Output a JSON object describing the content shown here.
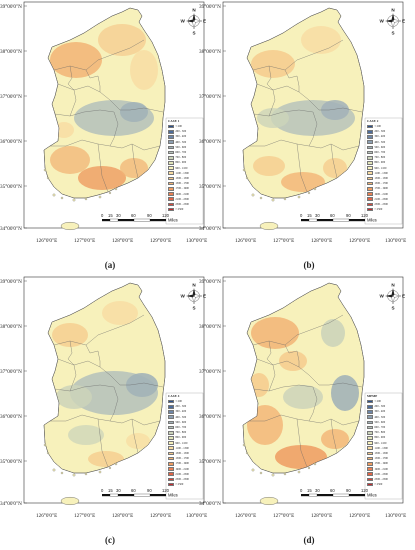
{
  "panels": [
    {
      "tag": "(a)",
      "legend_title": "CASE 1",
      "variant": "a"
    },
    {
      "tag": "(b)",
      "legend_title": "CASE 2",
      "variant": "b"
    },
    {
      "tag": "(c)",
      "legend_title": "CASE 4",
      "variant": "c"
    },
    {
      "tag": "(d)",
      "legend_title": "MPMP",
      "variant": "d"
    }
  ],
  "lat_labels": [
    "39°00'0\"N",
    "38°00'0\"N",
    "37°00'0\"N",
    "36°00'0\"N",
    "35°00'0\"N",
    "34°00'0\"N"
  ],
  "lon_labels": [
    "126°0'0\"E",
    "127°0'0\"E",
    "128°0'0\"E",
    "129°0'0\"E",
    "130°0'0\"E"
  ],
  "compass": {
    "n": "N",
    "s": "S",
    "e": "E",
    "w": "W"
  },
  "scale": {
    "ticks": [
      "0",
      "15",
      "30",
      "60",
      "90",
      "120"
    ],
    "unit": "Miles"
  },
  "legend_classes": [
    {
      "label": "< 200",
      "color": "#2a4f8a"
    },
    {
      "label": "200 - 300",
      "color": "#4d6d9b"
    },
    {
      "label": "300 - 400",
      "color": "#6d86a8"
    },
    {
      "label": "400 - 500",
      "color": "#8c9fb2"
    },
    {
      "label": "500 - 600",
      "color": "#a2b2b8"
    },
    {
      "label": "600 - 700",
      "color": "#b7c3bb"
    },
    {
      "label": "700 - 800",
      "color": "#ccd4ba"
    },
    {
      "label": "800 - 900",
      "color": "#e2e5b9"
    },
    {
      "label": "900 - 1100",
      "color": "#f7f1bb"
    },
    {
      "label": "1100 - 1300",
      "color": "#f8dca2"
    },
    {
      "label": "1300 - 1500",
      "color": "#f5c98b"
    },
    {
      "label": "1500 - 1700",
      "color": "#f2b475"
    },
    {
      "label": "1700 - 1900",
      "color": "#ee9c61"
    },
    {
      "label": "1900 - 2100",
      "color": "#e87f52"
    },
    {
      "label": "2100 - 2300",
      "color": "#e06446"
    },
    {
      "label": "2300 - 2500",
      "color": "#d5463b"
    },
    {
      "label": "> 2500",
      "color": "#c52a30"
    }
  ],
  "colors": {
    "base": "#f7f1bb",
    "warm": "#f2b475",
    "warm_strong": "#ee9c61",
    "cool": "#b7c3bb",
    "cool_strong": "#a2b2b8",
    "border": "#555555"
  }
}
